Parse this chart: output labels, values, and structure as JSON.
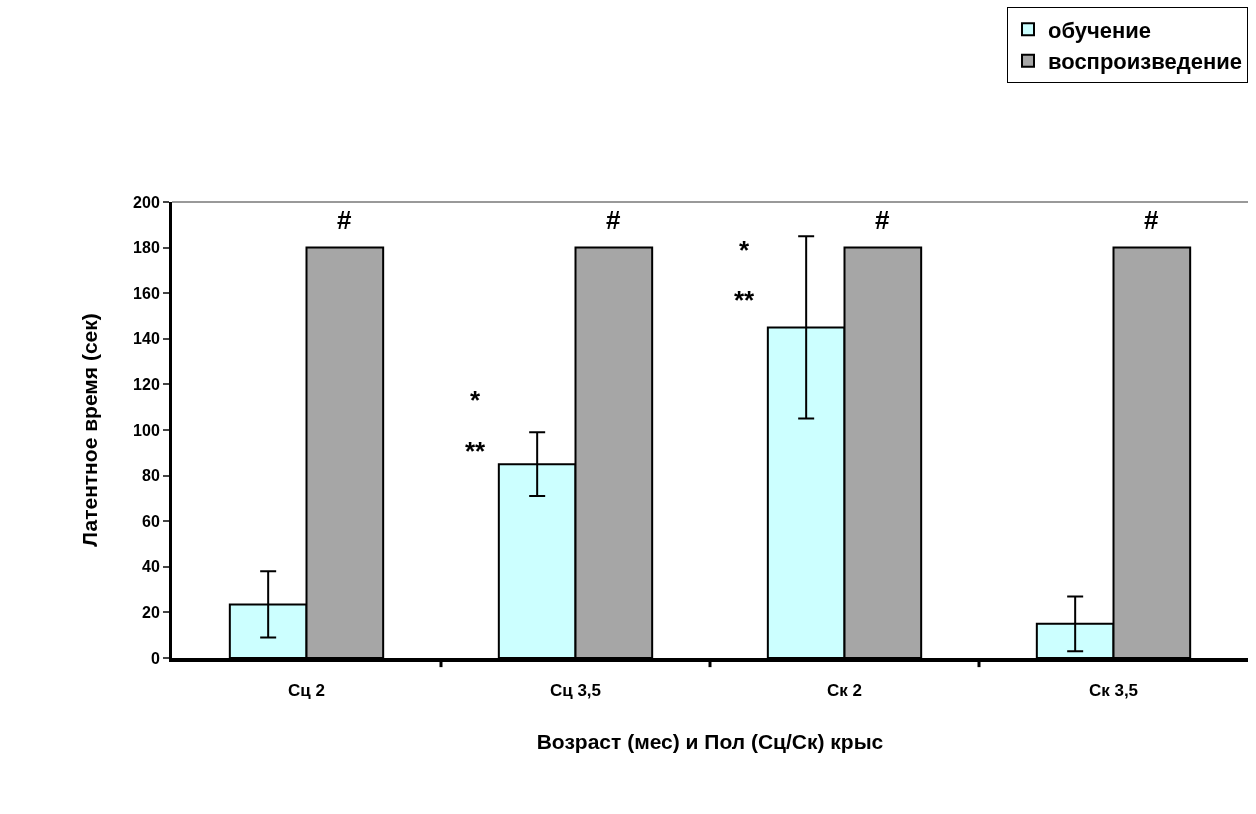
{
  "chart_data": {
    "type": "bar",
    "xlabel": "Возраст (мес) и Пол (Сц/Ск) крыс",
    "ylabel": "Латентное время (сек)",
    "categories": [
      "Сц 2",
      "Сц 3,5",
      "Ск 2",
      "Ск 3,5"
    ],
    "series": [
      {
        "name": "обучение",
        "color": "#ccffff",
        "values": [
          23.5,
          85,
          145,
          15
        ],
        "errors": [
          14.5,
          14,
          40,
          12
        ]
      },
      {
        "name": "воспроизведение",
        "color": "#a6a6a6",
        "values": [
          180,
          180,
          180,
          180
        ]
      }
    ],
    "ylim": [
      0,
      200
    ],
    "yticks": [
      0,
      20,
      40,
      60,
      80,
      100,
      120,
      140,
      160,
      180,
      200
    ],
    "grid": false,
    "legend": "top right",
    "annotations": [
      "#",
      "#",
      "#",
      "#",
      "*",
      "**",
      "*",
      "**"
    ]
  }
}
